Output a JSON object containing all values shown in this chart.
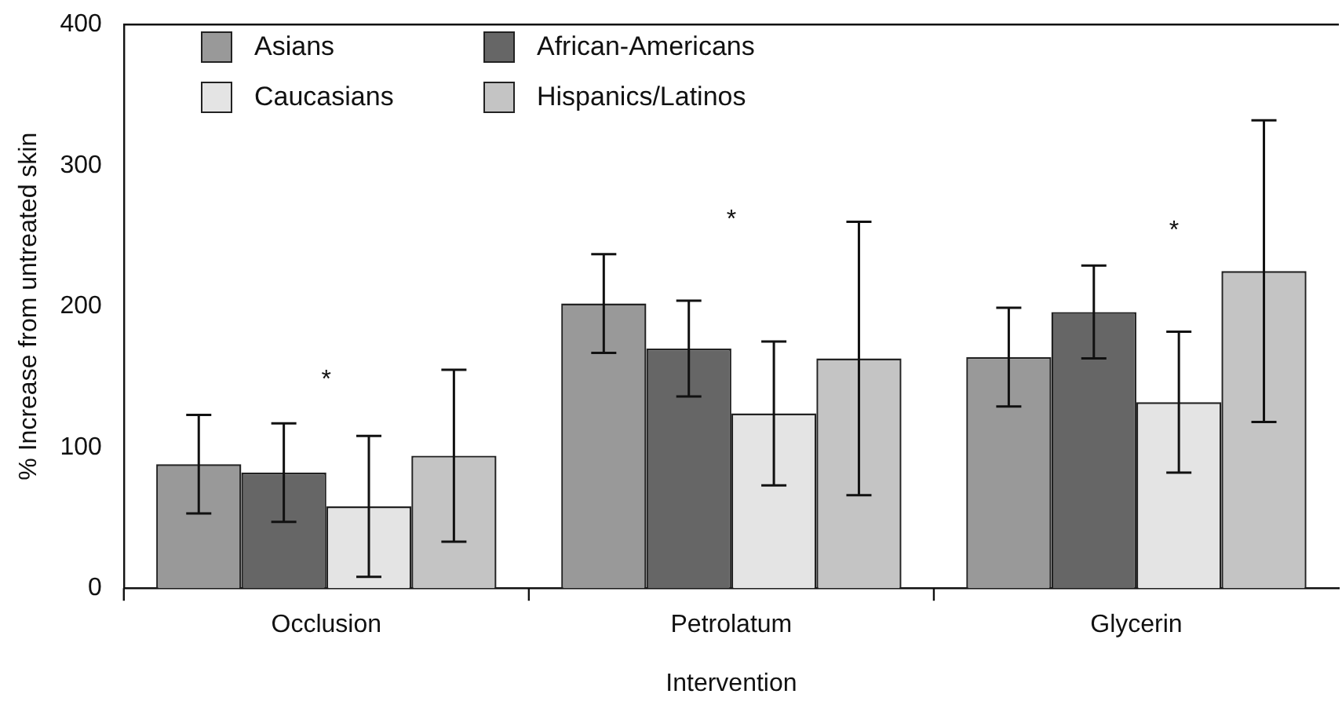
{
  "chart_data": {
    "type": "bar",
    "xlabel": "Intervention",
    "ylabel": "% Increase from untreated skin",
    "categories": [
      "Occlusion",
      "Petrolatum",
      "Glycerin"
    ],
    "series": [
      {
        "name": "Asians",
        "color": "#999999",
        "values": [
          88,
          202,
          164
        ],
        "errors": [
          35,
          35,
          35
        ]
      },
      {
        "name": "African-Americans",
        "color": "#666666",
        "values": [
          82,
          170,
          196
        ],
        "errors": [
          35,
          34,
          33
        ]
      },
      {
        "name": "Caucasians",
        "color": "#e4e4e4",
        "values": [
          58,
          124,
          132
        ],
        "errors": [
          50,
          51,
          50
        ]
      },
      {
        "name": "Hispanics/Latinos",
        "color": "#c4c4c4",
        "values": [
          94,
          163,
          225
        ],
        "errors": [
          61,
          97,
          107
        ]
      }
    ],
    "ylim": [
      0,
      400
    ],
    "yticks": [
      0,
      100,
      200,
      300,
      400
    ],
    "grid": false,
    "legend": "top left",
    "annotations": [
      "*",
      "*",
      "*"
    ]
  }
}
